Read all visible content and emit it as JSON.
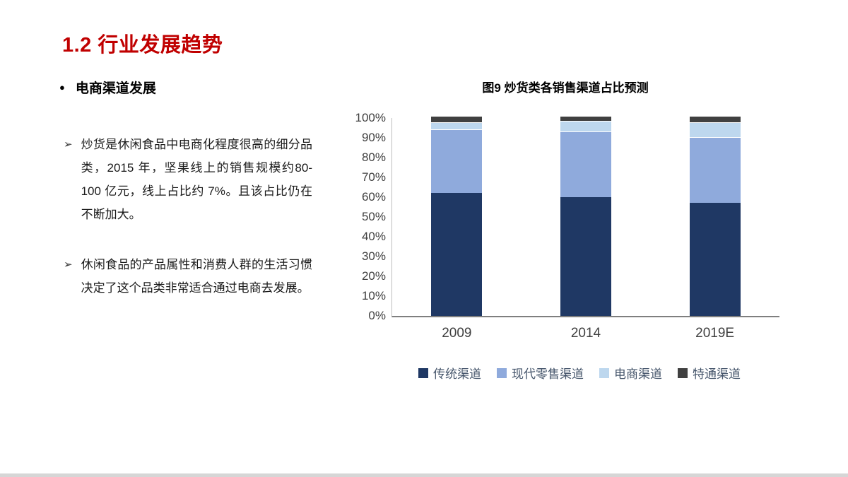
{
  "slide": {
    "title": "1.2 行业发展趋势",
    "accent_color": "#C00000"
  },
  "left": {
    "bullet_glyph": "●",
    "section_title": "电商渠道发展",
    "arrow_glyph": "➢",
    "paragraphs": [
      "炒货是休闲食品中电商化程度很高的细分品类，2015 年，坚果线上的销售规模约80-100 亿元，线上占比约 7%。且该占比仍在不断加大。",
      "休闲食品的产品属性和消费人群的生活习惯决定了这个品类非常适合通过电商去发展。"
    ]
  },
  "chart_data": {
    "type": "bar",
    "stacked": true,
    "title": "图9 炒货类各销售渠道占比预测",
    "categories": [
      "2009",
      "2014",
      "2019E"
    ],
    "series": [
      {
        "name": "传统渠道",
        "color": "#1F3864",
        "values": [
          62,
          60,
          57
        ]
      },
      {
        "name": "现代零售渠道",
        "color": "#8FAADC",
        "values": [
          32,
          33,
          33
        ]
      },
      {
        "name": "电商渠道",
        "color": "#BDD7EE",
        "values": [
          3,
          5,
          7
        ]
      },
      {
        "name": "特通渠道",
        "color": "#404040",
        "values": [
          3,
          2,
          3
        ]
      }
    ],
    "y_ticks": [
      "100%",
      "90%",
      "80%",
      "70%",
      "60%",
      "50%",
      "40%",
      "30%",
      "20%",
      "10%",
      "0%"
    ],
    "ylim": [
      0,
      100
    ],
    "ylabel": "",
    "xlabel": "",
    "grid": false,
    "legend_position": "bottom"
  }
}
